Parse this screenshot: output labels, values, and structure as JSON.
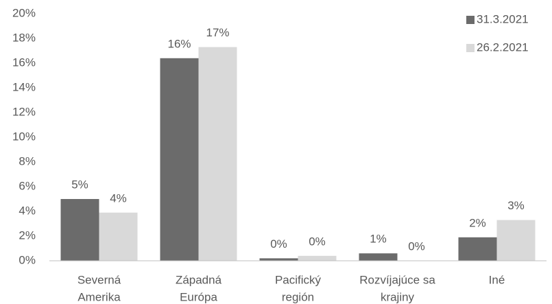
{
  "chart_data": {
    "type": "bar",
    "categories": [
      [
        "Severná",
        "Amerika"
      ],
      [
        "Západná",
        "Európa"
      ],
      [
        "Pacifický",
        "región"
      ],
      [
        "Rozvíjajúce sa",
        "krajiny"
      ],
      [
        "Iné"
      ]
    ],
    "series": [
      {
        "name": "31.3.2021",
        "color": "#6b6b6b",
        "values": [
          5.0,
          16.4,
          0.2,
          0.6,
          1.9
        ],
        "value_labels": [
          "5%",
          "16%",
          "0%",
          "1%",
          "2%"
        ]
      },
      {
        "name": "26.2.2021",
        "color": "#d9d9d9",
        "values": [
          3.9,
          17.3,
          0.4,
          0,
          3.3
        ],
        "value_labels": [
          "4%",
          "17%",
          "0%",
          "0%",
          "3%"
        ]
      }
    ],
    "ylim": [
      0,
      20
    ],
    "yticks": [
      {
        "value": 0,
        "label": "0%"
      },
      {
        "value": 2,
        "label": "2%"
      },
      {
        "value": 4,
        "label": "4%"
      },
      {
        "value": 6,
        "label": "6%"
      },
      {
        "value": 8,
        "label": "8%"
      },
      {
        "value": 10,
        "label": "10%"
      },
      {
        "value": 12,
        "label": "12%"
      },
      {
        "value": 14,
        "label": "14%"
      },
      {
        "value": 16,
        "label": "16%"
      },
      {
        "value": 18,
        "label": "18%"
      },
      {
        "value": 20,
        "label": "20%"
      }
    ],
    "grid": false,
    "legend": "top-right"
  }
}
